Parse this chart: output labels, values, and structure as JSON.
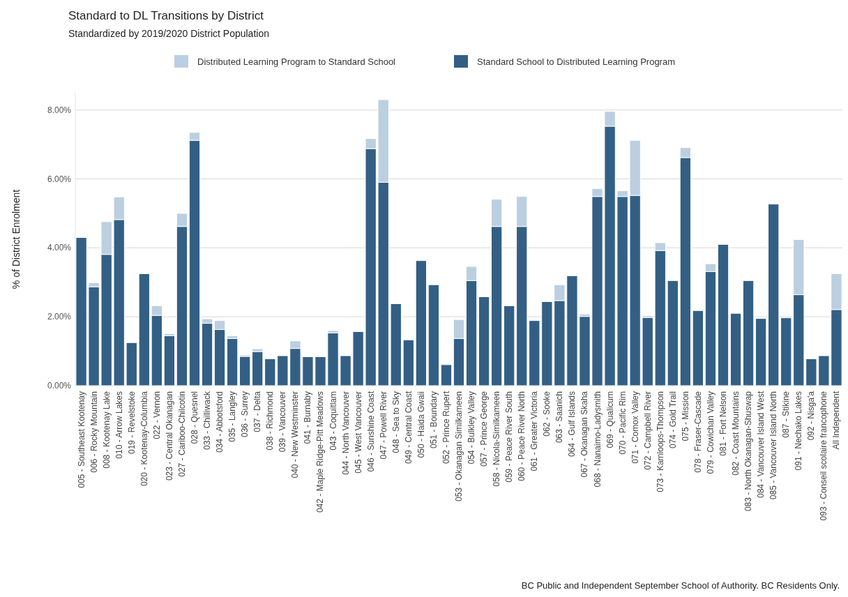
{
  "chart_data": {
    "type": "bar",
    "title": "Standard to DL Transitions by District",
    "subtitle": "Standardized by 2019/2020 District Population",
    "ylabel": "% of District Enrolment",
    "stacked": true,
    "grid": "y",
    "legend": "top",
    "categories": [
      "005 - Southeast Kootenay",
      "006 - Rocky Mountain",
      "008 - Kootenay Lake",
      "010 - Arrow Lakes",
      "019 - Revelstoke",
      "020 - Kootenay-Columbia",
      "022 - Vernon",
      "023 - Central Okanagan",
      "027 - Cariboo-Chilcotin",
      "028 - Quesnel",
      "033 - Chilliwack",
      "034 - Abbotsford",
      "035 - Langley",
      "036 - Surrey",
      "037 - Delta",
      "038 - Richmond",
      "039 - Vancouver",
      "040 - New Westminster",
      "041 - Burnaby",
      "042 - Maple Ridge-Pitt Meadows",
      "043 - Coquitlam",
      "044 - North Vancouver",
      "045 - West Vancouver",
      "046 - Sunshine Coast",
      "047 - Powell River",
      "048 - Sea to Sky",
      "049 - Central Coast",
      "050 - Haida Gwaii",
      "051 - Boundary",
      "052 - Prince Rupert",
      "053 - Okanagan Similkameen",
      "054 - Bulkley Valley",
      "057 - Prince George",
      "058 - Nicola-Similkameen",
      "059 - Peace River South",
      "060 - Peace River North",
      "061 - Greater Victoria",
      "062 - Sooke",
      "063 - Saanich",
      "064 - Gulf Islands",
      "067 - Okanagan Skaha",
      "068 - Nanaimo-Ladysmith",
      "069 - Qualicum",
      "070 - Pacific Rim",
      "071 - Comox Valley",
      "072 - Campbell River",
      "073 - Kamloops-Thompson",
      "074 - Gold Trail",
      "075 - Mission",
      "078 - Fraser-Cascade",
      "079 - Cowichan Valley",
      "081 - Fort Nelson",
      "082 - Coast Mountains",
      "083 - North Okanagan-Shuswap",
      "084 - Vancouver Island West",
      "085 - Vancouver Island North",
      "087 - Stikine",
      "091 - Nechako Lakes",
      "092 - Nisga'a",
      "093 - Conseil scolaire francophone",
      "All Independent"
    ],
    "series": [
      {
        "name": "Standard School to Distributed Learning Program",
        "color": "#345f84",
        "values": [
          4.3,
          2.87,
          3.81,
          4.82,
          1.25,
          3.25,
          2.04,
          1.45,
          4.62,
          7.12,
          1.81,
          1.63,
          1.37,
          0.85,
          0.99,
          0.78,
          0.87,
          1.08,
          0.84,
          0.84,
          1.53,
          0.87,
          1.57,
          6.88,
          5.9,
          2.38,
          1.33,
          3.63,
          2.93,
          0.61,
          1.37,
          3.05,
          2.58,
          4.62,
          2.32,
          4.62,
          1.89,
          2.44,
          2.47,
          3.19,
          2.01,
          5.49,
          7.53,
          5.49,
          5.52,
          1.98,
          3.92,
          3.05,
          6.62,
          2.18,
          3.31,
          4.1,
          2.1,
          3.05,
          1.95,
          5.27,
          1.97,
          2.64,
          0.78,
          0.87,
          2.21
        ]
      },
      {
        "name": "Distributed Learning Program to Standard School",
        "color": "#bccfe0",
        "values": [
          null,
          0.12,
          0.95,
          0.66,
          null,
          null,
          0.28,
          0.06,
          0.38,
          0.23,
          0.13,
          0.26,
          0.08,
          0.04,
          0.08,
          null,
          null,
          0.22,
          null,
          null,
          0.07,
          null,
          null,
          0.29,
          2.4,
          null,
          null,
          null,
          null,
          null,
          0.55,
          0.41,
          null,
          0.79,
          null,
          0.87,
          null,
          null,
          0.46,
          null,
          0.07,
          0.23,
          0.43,
          0.17,
          1.6,
          0.05,
          0.23,
          null,
          0.29,
          null,
          0.23,
          null,
          null,
          null,
          null,
          null,
          null,
          1.6,
          null,
          null,
          1.04
        ]
      }
    ],
    "ylim": [
      0,
      8.5
    ],
    "yticks": [
      {
        "value": 0,
        "label": "0.00%"
      },
      {
        "value": 2,
        "label": "2.00%"
      },
      {
        "value": 4,
        "label": "4.00%"
      },
      {
        "value": 6,
        "label": "6.00%"
      },
      {
        "value": 8,
        "label": "8.00%"
      }
    ],
    "annotations": [
      "BC Public and Independent September School of Authority. BC Residents Only."
    ]
  }
}
